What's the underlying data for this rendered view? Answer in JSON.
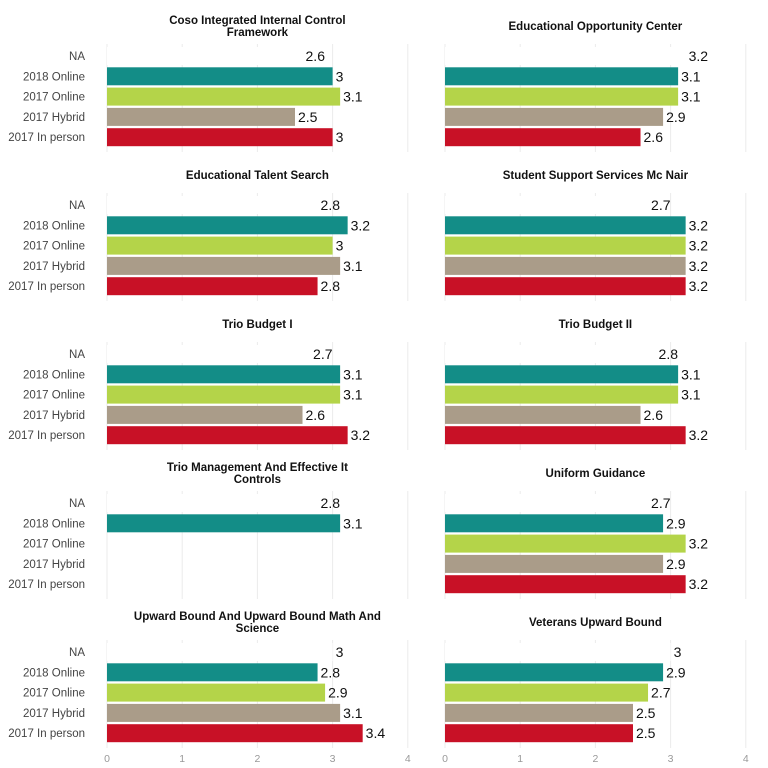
{
  "chart_data": {
    "type": "bar",
    "orientation": "horizontal",
    "categories": [
      "NA",
      "2018 Online",
      "2017 Online",
      "2017 Hybrid",
      "2017 In person"
    ],
    "xlim": [
      0,
      4
    ],
    "xticks": [
      "0",
      "1",
      "2",
      "3",
      "4"
    ],
    "grid": true,
    "colors": {
      "NA": "#ffffff",
      "2018 Online": "#138d87",
      "2017 Online": "#b4d449",
      "2017 Hybrid": "#aa9c89",
      "2017 In person": "#c81126"
    },
    "panels": [
      {
        "title": "Coso Integrated Internal Control Framework",
        "title_lines": [
          "Coso Integrated Internal Control",
          "Framework"
        ],
        "values": [
          2.6,
          3.0,
          3.1,
          2.5,
          3.0
        ],
        "labels": [
          "2.6",
          "3",
          "3.1",
          "2.5",
          "3"
        ]
      },
      {
        "title": "Educational Opportunity Center",
        "title_lines": [
          "Educational Opportunity Center"
        ],
        "values": [
          3.2,
          3.1,
          3.1,
          2.9,
          2.6
        ],
        "labels": [
          "3.2",
          "3.1",
          "3.1",
          "2.9",
          "2.6"
        ]
      },
      {
        "title": "Educational Talent Search",
        "title_lines": [
          "Educational Talent Search"
        ],
        "values": [
          2.8,
          3.2,
          3.0,
          3.1,
          2.8
        ],
        "labels": [
          "2.8",
          "3.2",
          "3",
          "3.1",
          "2.8"
        ]
      },
      {
        "title": "Student Support Services Mc Nair",
        "title_lines": [
          "Student Support Services Mc Nair"
        ],
        "values": [
          2.7,
          3.2,
          3.2,
          3.2,
          3.2
        ],
        "labels": [
          "2.7",
          "3.2",
          "3.2",
          "3.2",
          "3.2"
        ]
      },
      {
        "title": "Trio Budget I",
        "title_lines": [
          "Trio Budget I"
        ],
        "values": [
          2.7,
          3.1,
          3.1,
          2.6,
          3.2
        ],
        "labels": [
          "2.7",
          "3.1",
          "3.1",
          "2.6",
          "3.2"
        ]
      },
      {
        "title": "Trio Budget II",
        "title_lines": [
          "Trio Budget II"
        ],
        "values": [
          2.8,
          3.1,
          3.1,
          2.6,
          3.2
        ],
        "labels": [
          "2.8",
          "3.1",
          "3.1",
          "2.6",
          "3.2"
        ]
      },
      {
        "title": "Trio Management And Effective It Controls",
        "title_lines": [
          "Trio Management And Effective It",
          "Controls"
        ],
        "values": [
          2.8,
          3.1,
          null,
          null,
          null
        ],
        "labels": [
          "2.8",
          "3.1",
          "",
          "",
          ""
        ]
      },
      {
        "title": "Uniform Guidance",
        "title_lines": [
          "Uniform Guidance"
        ],
        "values": [
          2.7,
          2.9,
          3.2,
          2.9,
          3.2
        ],
        "labels": [
          "2.7",
          "2.9",
          "3.2",
          "2.9",
          "3.2"
        ]
      },
      {
        "title": "Upward Bound And Upward Bound Math And Science",
        "title_lines": [
          "Upward Bound And Upward Bound Math And",
          "Science"
        ],
        "values": [
          3.0,
          2.8,
          2.9,
          3.1,
          3.4
        ],
        "labels": [
          "3",
          "2.8",
          "2.9",
          "3.1",
          "3.4"
        ]
      },
      {
        "title": "Veterans Upward Bound",
        "title_lines": [
          "Veterans Upward Bound"
        ],
        "values": [
          3.0,
          2.9,
          2.7,
          2.5,
          2.5
        ],
        "labels": [
          "3",
          "2.9",
          "2.7",
          "2.5",
          "2.5"
        ]
      }
    ]
  }
}
